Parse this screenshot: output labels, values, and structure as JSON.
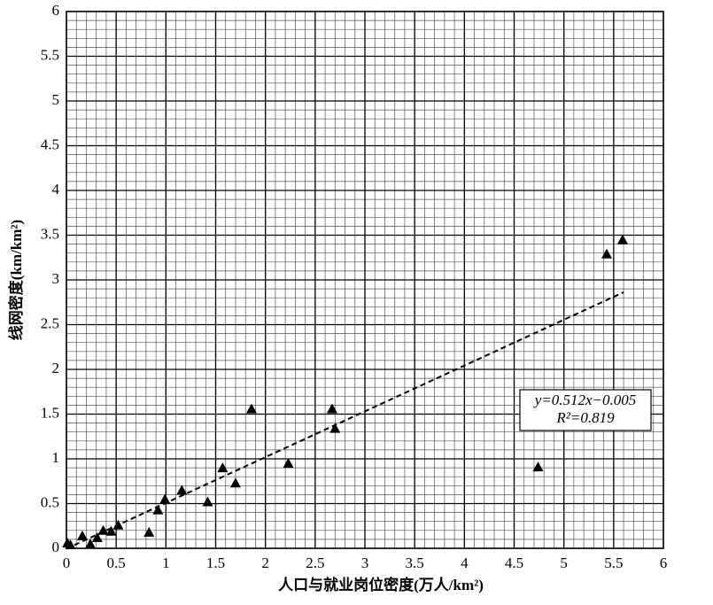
{
  "chart_data": {
    "type": "scatter",
    "x_label": "人口与就业岗位密度(万人/km²)",
    "y_label": "线网密度(km/km²)",
    "xlim": [
      0,
      6
    ],
    "ylim": [
      0,
      6
    ],
    "xticks": [
      0,
      0.5,
      1,
      1.5,
      2,
      2.5,
      3,
      3.5,
      4,
      4.5,
      5,
      5.5,
      6
    ],
    "yticks": [
      0,
      0.5,
      1,
      1.5,
      2,
      2.5,
      3,
      3.5,
      4,
      4.5,
      5,
      5.5,
      6
    ],
    "grid": true,
    "series": [
      {
        "color": "#000000",
        "x": [
          5.59,
          5.43,
          4.74,
          2.67,
          2.7,
          1.86,
          2.23,
          1.57,
          1.7,
          1.42,
          1.16,
          0.99,
          0.92,
          0.83,
          0.52,
          0.45,
          0.37,
          0.31,
          0.16,
          0.24,
          0.04,
          0.01
        ],
        "values": [
          3.45,
          3.29,
          0.91,
          1.56,
          1.34,
          1.56,
          0.95,
          0.9,
          0.73,
          0.52,
          0.65,
          0.55,
          0.43,
          0.18,
          0.26,
          0.19,
          0.2,
          0.12,
          0.14,
          0.05,
          0.04,
          0.06
        ]
      }
    ],
    "trendline": {
      "x": [
        0,
        5.6
      ],
      "values": [
        -0.005,
        2.862
      ]
    },
    "annotation": [
      "y=0.512x−0.005",
      "R²=0.819"
    ]
  }
}
